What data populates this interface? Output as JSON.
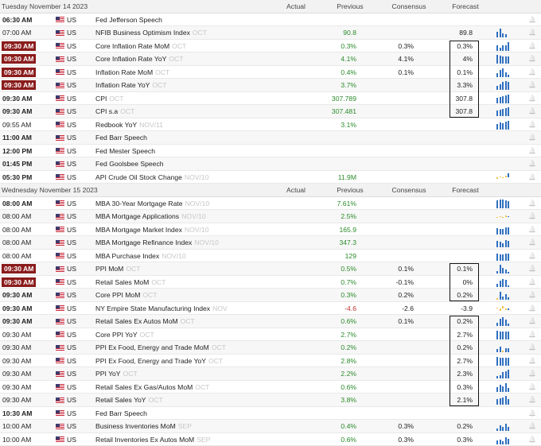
{
  "headers": {
    "actual": "Actual",
    "previous": "Previous",
    "consensus": "Consensus",
    "forecast": "Forecast"
  },
  "country_code": "US",
  "colors": {
    "time_badge": "#8b1c1c",
    "previous_positive": "#2a8a2a",
    "previous_negative": "#c03030",
    "spark_blue": "#2f6fbf",
    "spark_yellow": "#f0c24b"
  },
  "days": [
    {
      "title": "Tuesday November 14 2023",
      "events": [
        {
          "time": "06:30 AM",
          "style": "bold",
          "name": "Fed Jefferson Speech",
          "period": "",
          "actual": "",
          "previous": "",
          "consensus": "",
          "forecast": "",
          "spark": []
        },
        {
          "time": "07:00 AM",
          "style": "plain",
          "name": "NFIB Business Optimism Index",
          "period": "OCT",
          "actual": "",
          "previous": "90.8",
          "prev_color": "pos",
          "consensus": "",
          "forecast": "89.8",
          "spark": [
            0.6,
            1,
            0.5,
            0.4
          ]
        },
        {
          "time": "09:30 AM",
          "style": "red",
          "name": "Core Inflation Rate MoM",
          "period": "OCT",
          "actual": "",
          "previous": "0.3%",
          "prev_color": "pos",
          "consensus": "0.3%",
          "forecast": "0.3%",
          "spark": [
            0.6,
            0.3,
            0.6,
            0.6,
            1
          ]
        },
        {
          "time": "09:30 AM",
          "style": "red",
          "name": "Core Inflation Rate YoY",
          "period": "OCT",
          "actual": "",
          "previous": "4.1%",
          "prev_color": "pos",
          "consensus": "4.1%",
          "forecast": "4%",
          "spark": [
            1,
            0.9,
            0.85,
            0.8,
            0.78
          ]
        },
        {
          "time": "09:30 AM",
          "style": "red",
          "name": "Inflation Rate MoM",
          "period": "OCT",
          "actual": "",
          "previous": "0.4%",
          "prev_color": "pos",
          "consensus": "0.1%",
          "forecast": "0.1%",
          "spark": [
            0.4,
            0.8,
            1,
            0.5,
            0.2
          ]
        },
        {
          "time": "09:30 AM",
          "style": "red",
          "name": "Inflation Rate YoY",
          "period": "OCT",
          "actual": "",
          "previous": "3.7%",
          "prev_color": "pos",
          "consensus": "",
          "forecast": "3.3%",
          "spark": [
            0.5,
            0.6,
            0.9,
            1,
            0.9
          ]
        },
        {
          "time": "09:30 AM",
          "style": "bold",
          "name": "CPI",
          "period": "OCT",
          "actual": "",
          "previous": "307.789",
          "prev_color": "pos",
          "consensus": "",
          "forecast": "307.8",
          "spark": [
            0.6,
            0.7,
            0.8,
            0.9,
            1
          ]
        },
        {
          "time": "09:30 AM",
          "style": "bold",
          "name": "CPI s.a",
          "period": "OCT",
          "actual": "",
          "previous": "307.481",
          "prev_color": "pos",
          "consensus": "",
          "forecast": "307.8",
          "spark": [
            0.6,
            0.7,
            0.8,
            0.9,
            1
          ]
        },
        {
          "time": "09:55 AM",
          "style": "plain",
          "name": "Redbook YoY",
          "period": "NOV/11",
          "actual": "",
          "previous": "3.1%",
          "prev_color": "pos",
          "consensus": "",
          "forecast": "",
          "spark": [
            0.6,
            0.8,
            0.7,
            0.9,
            1
          ]
        },
        {
          "time": "11:00 AM",
          "style": "bold",
          "name": "Fed Barr Speech",
          "period": "",
          "actual": "",
          "previous": "",
          "consensus": "",
          "forecast": "",
          "spark": []
        },
        {
          "time": "12:00 PM",
          "style": "bold",
          "name": "Fed Mester Speech",
          "period": "",
          "actual": "",
          "previous": "",
          "consensus": "",
          "forecast": "",
          "spark": []
        },
        {
          "time": "01:45 PM",
          "style": "bold",
          "name": "Fed Goolsbee Speech",
          "period": "",
          "actual": "",
          "previous": "",
          "consensus": "",
          "forecast": "",
          "spark": []
        },
        {
          "time": "05:30 PM",
          "style": "bold",
          "name": "API Crude Oil Stock Change",
          "period": "NOV/10",
          "actual": "",
          "previous": "11.9M",
          "prev_color": "pos",
          "consensus": "",
          "forecast": "",
          "spark": [
            -0.3,
            0.2,
            -0.2,
            0.4,
            1
          ]
        }
      ]
    },
    {
      "title": "Wednesday November 15 2023",
      "events": [
        {
          "time": "08:00 AM",
          "style": "bold",
          "name": "MBA 30-Year Mortgage Rate",
          "period": "NOV/10",
          "actual": "",
          "previous": "7.61%",
          "prev_color": "pos",
          "consensus": "",
          "forecast": "",
          "spark": [
            0.9,
            1,
            0.95,
            0.85,
            0.8
          ]
        },
        {
          "time": "08:00 AM",
          "style": "plain",
          "name": "MBA Mortgage Applications",
          "period": "NOV/10",
          "actual": "",
          "previous": "2.5%",
          "prev_color": "pos",
          "consensus": "",
          "forecast": "",
          "spark": [
            -0.2,
            0.1,
            -0.15,
            0.35,
            0.1
          ]
        },
        {
          "time": "08:00 AM",
          "style": "plain",
          "name": "MBA Mortgage Market Index",
          "period": "NOV/10",
          "actual": "",
          "previous": "165.9",
          "prev_color": "pos",
          "consensus": "",
          "forecast": "",
          "spark": [
            0.7,
            0.6,
            0.55,
            0.75,
            0.8
          ]
        },
        {
          "time": "08:00 AM",
          "style": "plain",
          "name": "MBA Mortgage Refinance Index",
          "period": "NOV/10",
          "actual": "",
          "previous": "347.3",
          "prev_color": "pos",
          "consensus": "",
          "forecast": "",
          "spark": [
            0.7,
            0.6,
            0.5,
            0.8,
            0.75
          ]
        },
        {
          "time": "08:00 AM",
          "style": "plain",
          "name": "MBA Purchase Index",
          "period": "NOV/10",
          "actual": "",
          "previous": "129",
          "prev_color": "pos",
          "consensus": "",
          "forecast": "",
          "spark": [
            0.8,
            0.7,
            0.65,
            0.75,
            0.8
          ]
        },
        {
          "time": "09:30 AM",
          "style": "red",
          "name": "PPI MoM",
          "period": "OCT",
          "actual": "",
          "previous": "0.5%",
          "prev_color": "pos",
          "consensus": "0.1%",
          "forecast": "0.1%",
          "spark": [
            0.3,
            1,
            0.6,
            0.5,
            0.2
          ]
        },
        {
          "time": "09:30 AM",
          "style": "red",
          "name": "Retail Sales MoM",
          "period": "OCT",
          "actual": "",
          "previous": "0.7%",
          "prev_color": "pos",
          "consensus": "-0.1%",
          "forecast": "0%",
          "spark": [
            0.3,
            0.7,
            0.9,
            0.8,
            0.1
          ]
        },
        {
          "time": "09:30 AM",
          "style": "bold",
          "name": "Core PPI MoM",
          "period": "OCT",
          "actual": "",
          "previous": "0.3%",
          "prev_color": "pos",
          "consensus": "0.2%",
          "forecast": "0.2%",
          "spark": [
            0.2,
            0.9,
            0.4,
            0.6,
            0.3
          ]
        },
        {
          "time": "09:30 AM",
          "style": "bold",
          "name": "NY Empire State Manufacturing Index",
          "period": "NOV",
          "actual": "",
          "previous": "-4.6",
          "prev_color": "neg",
          "consensus": "-2.6",
          "forecast": "-3.9",
          "spark": [
            0.15,
            -0.6,
            0.5,
            -0.4,
            -0.3
          ]
        },
        {
          "time": "09:30 AM",
          "style": "bold",
          "name": "Retail Sales Ex Autos MoM",
          "period": "OCT",
          "actual": "",
          "previous": "0.6%",
          "prev_color": "pos",
          "consensus": "0.1%",
          "forecast": "0.2%",
          "spark": [
            0.4,
            0.8,
            1,
            0.7,
            0.3
          ]
        },
        {
          "time": "09:30 AM",
          "style": "plain",
          "name": "Core PPI YoY",
          "period": "OCT",
          "actual": "",
          "previous": "2.7%",
          "prev_color": "pos",
          "consensus": "",
          "forecast": "2.7%",
          "spark": [
            1,
            0.9,
            0.85,
            0.9,
            0.85
          ]
        },
        {
          "time": "09:30 AM",
          "style": "plain",
          "name": "PPI Ex Food, Energy and Trade MoM",
          "period": "OCT",
          "actual": "",
          "previous": "0.2%",
          "prev_color": "pos",
          "consensus": "",
          "forecast": "0.2%",
          "spark": [
            0.4,
            0.6,
            0.2,
            0.5,
            0.5
          ]
        },
        {
          "time": "09:30 AM",
          "style": "plain",
          "name": "PPI Ex Food, Energy and Trade YoY",
          "period": "OCT",
          "actual": "",
          "previous": "2.8%",
          "prev_color": "pos",
          "consensus": "",
          "forecast": "2.7%",
          "spark": [
            1,
            0.9,
            0.85,
            0.9,
            0.85
          ]
        },
        {
          "time": "09:30 AM",
          "style": "plain",
          "name": "PPI YoY",
          "period": "OCT",
          "actual": "",
          "previous": "2.2%",
          "prev_color": "pos",
          "consensus": "",
          "forecast": "2.3%",
          "spark": [
            0.3,
            0.4,
            0.7,
            0.8,
            1
          ]
        },
        {
          "time": "09:30 AM",
          "style": "plain",
          "name": "Retail Sales Ex Gas/Autos MoM",
          "period": "OCT",
          "actual": "",
          "previous": "0.6%",
          "prev_color": "pos",
          "consensus": "",
          "forecast": "0.3%",
          "spark": [
            0.5,
            0.8,
            0.6,
            1,
            0.4
          ]
        },
        {
          "time": "09:30 AM",
          "style": "plain",
          "name": "Retail Sales YoY",
          "period": "OCT",
          "actual": "",
          "previous": "3.8%",
          "prev_color": "pos",
          "consensus": "",
          "forecast": "2.1%",
          "spark": [
            0.6,
            0.7,
            0.8,
            1,
            0.6
          ]
        },
        {
          "time": "10:30 AM",
          "style": "bold",
          "name": "Fed Barr Speech",
          "period": "",
          "actual": "",
          "previous": "",
          "consensus": "",
          "forecast": "",
          "spark": []
        },
        {
          "time": "10:00 AM",
          "style": "plain",
          "name": "Business Inventories MoM",
          "period": "SEP",
          "actual": "",
          "previous": "0.4%",
          "prev_color": "pos",
          "consensus": "0.3%",
          "forecast": "0.2%",
          "spark": [
            0.3,
            0.6,
            0.5,
            0.8,
            0.5
          ]
        },
        {
          "time": "10:00 AM",
          "style": "plain",
          "name": "Retail Inventories Ex Autos MoM",
          "period": "SEP",
          "actual": "",
          "previous": "0.6%",
          "prev_color": "pos",
          "consensus": "0.3%",
          "forecast": "0.3%",
          "spark": [
            0.4,
            0.5,
            0.3,
            0.8,
            0.6
          ]
        }
      ]
    }
  ]
}
